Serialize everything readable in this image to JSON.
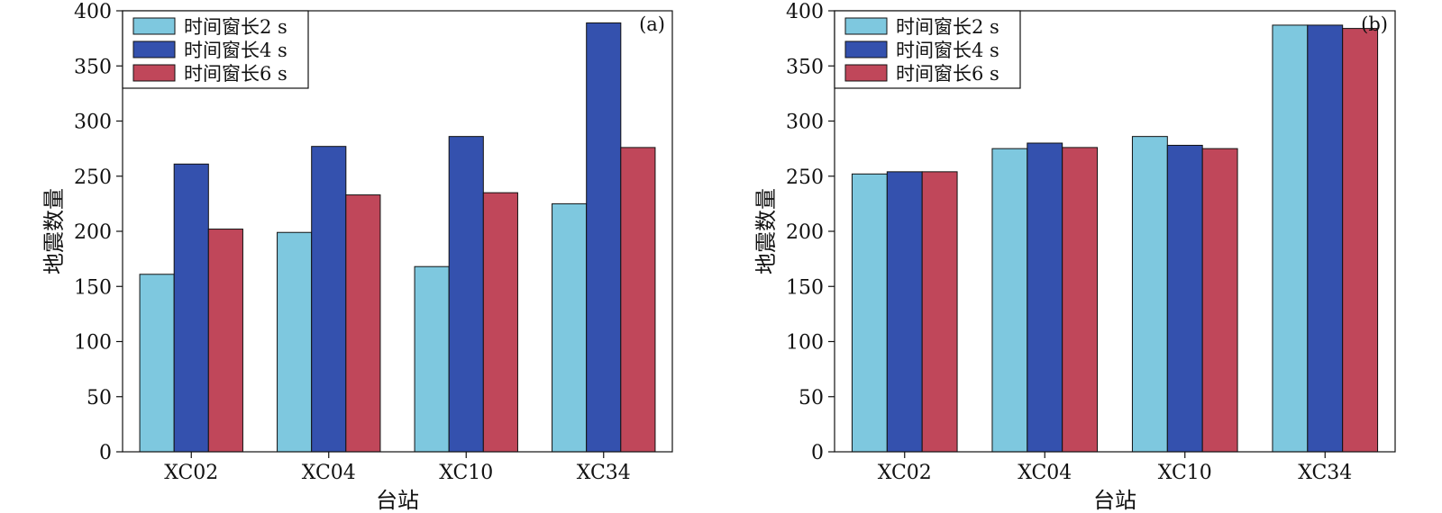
{
  "chart_data": [
    {
      "type": "bar",
      "panel": "(a)",
      "categories": [
        "XC02",
        "XC04",
        "XC10",
        "XC34"
      ],
      "series": [
        {
          "name": "时间窗长2 s",
          "color": "#7ec8df",
          "values": [
            161,
            199,
            168,
            225
          ]
        },
        {
          "name": "时间窗长4 s",
          "color": "#3451ae",
          "values": [
            261,
            277,
            286,
            389
          ]
        },
        {
          "name": "时间窗长6 s",
          "color": "#c0475a",
          "values": [
            202,
            233,
            235,
            276
          ]
        }
      ],
      "ylim": [
        0,
        400
      ],
      "yticks": [
        0,
        50,
        100,
        150,
        200,
        250,
        300,
        350,
        400
      ],
      "xlabel": "台站",
      "ylabel": "地震数量",
      "legend": "top-left",
      "grid": false
    },
    {
      "type": "bar",
      "panel": "(b)",
      "categories": [
        "XC02",
        "XC04",
        "XC10",
        "XC34"
      ],
      "series": [
        {
          "name": "时间窗长2 s",
          "color": "#7ec8df",
          "values": [
            252,
            275,
            286,
            387
          ]
        },
        {
          "name": "时间窗长4 s",
          "color": "#3451ae",
          "values": [
            254,
            280,
            278,
            387
          ]
        },
        {
          "name": "时间窗长6 s",
          "color": "#c0475a",
          "values": [
            254,
            276,
            275,
            384
          ]
        }
      ],
      "ylim": [
        0,
        400
      ],
      "yticks": [
        0,
        50,
        100,
        150,
        200,
        250,
        300,
        350,
        400
      ],
      "xlabel": "台站",
      "ylabel": "地震数量",
      "legend": "top-left",
      "grid": false
    }
  ]
}
